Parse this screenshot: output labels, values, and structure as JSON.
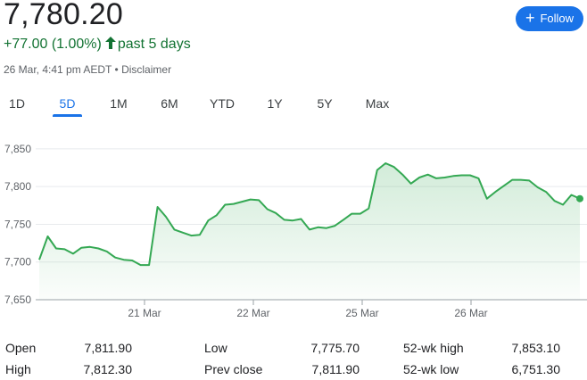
{
  "header": {
    "price": "7,780.20",
    "change": "+77.00 (1.00%)",
    "change_period": "past 5 days",
    "timestamp": "26 Mar, 4:41 pm AEDT",
    "separator": "•",
    "disclaimer": "Disclaimer",
    "follow_label": "Follow",
    "positive_color": "#137333",
    "accent_color": "#1a73e8"
  },
  "tabs": [
    {
      "label": "1D",
      "active": false
    },
    {
      "label": "5D",
      "active": true
    },
    {
      "label": "1M",
      "active": false
    },
    {
      "label": "6M",
      "active": false
    },
    {
      "label": "YTD",
      "active": false
    },
    {
      "label": "1Y",
      "active": false
    },
    {
      "label": "5Y",
      "active": false
    },
    {
      "label": "Max",
      "active": false
    }
  ],
  "chart_data": {
    "type": "area",
    "title": "",
    "xlabel": "",
    "ylabel": "",
    "ylim": [
      7650,
      7870
    ],
    "y_ticks": [
      "7,850",
      "7,800",
      "7,750",
      "7,700",
      "7,650"
    ],
    "y_tick_values": [
      7850,
      7800,
      7750,
      7700,
      7650
    ],
    "x_ticks": [
      {
        "label": "21 Mar",
        "at": 10
      },
      {
        "label": "22 Mar",
        "at": 20
      },
      {
        "label": "25 Mar",
        "at": 30
      },
      {
        "label": "26 Mar",
        "at": 40
      }
    ],
    "x_range": [
      0,
      50
    ],
    "grid": true,
    "line_color": "#34a853",
    "series": [
      {
        "values": [
          7703,
          7734,
          7718,
          7717,
          7711,
          7719,
          7720,
          7718,
          7714,
          7706,
          7703,
          7702,
          7696,
          7696,
          7773,
          7760,
          7743,
          7739,
          7735,
          7736,
          7755,
          7762,
          7776,
          7777,
          7780,
          7783,
          7782,
          7770,
          7765,
          7756,
          7755,
          7757,
          7743,
          7746,
          7745,
          7748,
          7756,
          7764,
          7764,
          7771,
          7822,
          7831,
          7826,
          7816,
          7804,
          7812,
          7816,
          7811,
          7812,
          7814,
          7815,
          7815,
          7811,
          7784,
          7793,
          7801,
          7809,
          7809,
          7808,
          7799,
          7793,
          7781,
          7776,
          7789,
          7784
        ]
      }
    ]
  },
  "stats": [
    {
      "label": "Open",
      "value": "7,811.90"
    },
    {
      "label": "High",
      "value": "7,812.30"
    },
    {
      "label": "Low",
      "value": "7,775.70"
    },
    {
      "label": "Prev close",
      "value": "7,811.90"
    },
    {
      "label": "52-wk high",
      "value": "7,853.10"
    },
    {
      "label": "52-wk low",
      "value": "6,751.30"
    }
  ]
}
